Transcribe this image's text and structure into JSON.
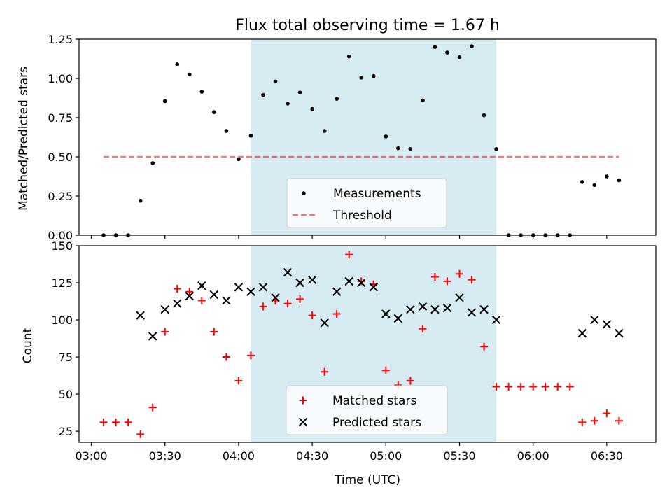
{
  "colors": {
    "background": "#ffffff",
    "span_fill": "#add8e6",
    "measurement": "#000000",
    "threshold": "#ff0000",
    "matched": "#ff0000",
    "predicted": "#000000"
  },
  "chart_data": [
    {
      "type": "scatter",
      "title": "Flux total observing time = 1.67 h",
      "ylabel": "Matched/Predicted stars",
      "xlabel": "",
      "xlim": [
        "02:55",
        "06:50"
      ],
      "ylim": [
        0,
        1.25
      ],
      "yticks": [
        0,
        0.25,
        0.5,
        0.75,
        1.0,
        1.25
      ],
      "ytick_labels": [
        "0.00",
        "0.25",
        "0.50",
        "0.75",
        "1.00",
        "1.25"
      ],
      "highlight_span": [
        "04:05",
        "05:45"
      ],
      "legend": {
        "placement": "lower-center",
        "entries": [
          "Measurements",
          "Threshold"
        ]
      },
      "series": [
        {
          "name": "Measurements",
          "marker": "dot",
          "points": [
            [
              "03:05",
              0
            ],
            [
              "03:10",
              0
            ],
            [
              "03:15",
              0
            ],
            [
              "03:20",
              0.22
            ],
            [
              "03:25",
              0.46
            ],
            [
              "03:30",
              0.855
            ],
            [
              "03:35",
              1.09
            ],
            [
              "03:40",
              1.025
            ],
            [
              "03:45",
              0.915
            ],
            [
              "03:50",
              0.785
            ],
            [
              "03:55",
              0.665
            ],
            [
              "04:00",
              0.485
            ],
            [
              "04:05",
              0.635
            ],
            [
              "04:10",
              0.895
            ],
            [
              "04:15",
              0.98
            ],
            [
              "04:20",
              0.84
            ],
            [
              "04:25",
              0.91
            ],
            [
              "04:30",
              0.805
            ],
            [
              "04:35",
              0.665
            ],
            [
              "04:40",
              0.87
            ],
            [
              "04:45",
              1.14
            ],
            [
              "04:50",
              1.005
            ],
            [
              "04:55",
              1.015
            ],
            [
              "05:00",
              0.63
            ],
            [
              "05:05",
              0.555
            ],
            [
              "05:10",
              0.55
            ],
            [
              "05:15",
              0.86
            ],
            [
              "05:20",
              1.2
            ],
            [
              "05:25",
              1.165
            ],
            [
              "05:30",
              1.135
            ],
            [
              "05:35",
              1.205
            ],
            [
              "05:40",
              0.765
            ],
            [
              "05:45",
              0.55
            ],
            [
              "05:50",
              0
            ],
            [
              "05:55",
              0
            ],
            [
              "06:00",
              0
            ],
            [
              "06:05",
              0
            ],
            [
              "06:10",
              0
            ],
            [
              "06:15",
              0
            ],
            [
              "06:20",
              0.34
            ],
            [
              "06:25",
              0.32
            ],
            [
              "06:30",
              0.375
            ],
            [
              "06:35",
              0.35
            ]
          ]
        },
        {
          "name": "Threshold",
          "marker": "dashed-line",
          "points": [
            [
              "03:05",
              0.5
            ],
            [
              "06:35",
              0.5
            ]
          ]
        }
      ]
    },
    {
      "type": "scatter",
      "title": "",
      "ylabel": "Count",
      "xlabel": "Time (UTC)",
      "xlim": [
        "02:55",
        "06:50"
      ],
      "ylim": [
        17.5,
        150
      ],
      "yticks": [
        25,
        50,
        75,
        100,
        125,
        150
      ],
      "ytick_labels": [
        "25",
        "50",
        "75",
        "100",
        "125",
        "150"
      ],
      "xticks": [
        "03:00",
        "03:30",
        "04:00",
        "04:30",
        "05:00",
        "05:30",
        "06:00",
        "06:30"
      ],
      "highlight_span": [
        "04:05",
        "05:45"
      ],
      "legend": {
        "placement": "lower-center",
        "entries": [
          "Matched stars",
          "Predicted stars"
        ]
      },
      "series": [
        {
          "name": "Matched stars",
          "marker": "plus",
          "points": [
            [
              "03:05",
              31
            ],
            [
              "03:10",
              31
            ],
            [
              "03:15",
              31
            ],
            [
              "03:20",
              23
            ],
            [
              "03:25",
              41
            ],
            [
              "03:30",
              92
            ],
            [
              "03:35",
              121
            ],
            [
              "03:40",
              119
            ],
            [
              "03:45",
              113
            ],
            [
              "03:50",
              92
            ],
            [
              "03:55",
              75
            ],
            [
              "04:00",
              59
            ],
            [
              "04:05",
              76
            ],
            [
              "04:10",
              109
            ],
            [
              "04:15",
              113
            ],
            [
              "04:20",
              111
            ],
            [
              "04:25",
              114
            ],
            [
              "04:30",
              103
            ],
            [
              "04:35",
              65
            ],
            [
              "04:40",
              104
            ],
            [
              "04:45",
              144
            ],
            [
              "04:50",
              126
            ],
            [
              "04:55",
              124
            ],
            [
              "05:00",
              66
            ],
            [
              "05:05",
              56
            ],
            [
              "05:10",
              59
            ],
            [
              "05:15",
              94
            ],
            [
              "05:20",
              129
            ],
            [
              "05:25",
              126
            ],
            [
              "05:30",
              131
            ],
            [
              "05:35",
              127
            ],
            [
              "05:40",
              82
            ],
            [
              "05:45",
              55
            ],
            [
              "05:50",
              55
            ],
            [
              "05:55",
              55
            ],
            [
              "06:00",
              55
            ],
            [
              "06:05",
              55
            ],
            [
              "06:10",
              55
            ],
            [
              "06:15",
              55
            ],
            [
              "06:20",
              31
            ],
            [
              "06:25",
              32
            ],
            [
              "06:30",
              37
            ],
            [
              "06:35",
              32
            ]
          ]
        },
        {
          "name": "Predicted stars",
          "marker": "x",
          "points": [
            [
              "03:20",
              103
            ],
            [
              "03:25",
              89
            ],
            [
              "03:30",
              107
            ],
            [
              "03:35",
              111
            ],
            [
              "03:40",
              116
            ],
            [
              "03:45",
              123
            ],
            [
              "03:50",
              117
            ],
            [
              "03:55",
              113
            ],
            [
              "04:00",
              122
            ],
            [
              "04:05",
              119
            ],
            [
              "04:10",
              122
            ],
            [
              "04:15",
              115
            ],
            [
              "04:20",
              132
            ],
            [
              "04:25",
              125
            ],
            [
              "04:30",
              127
            ],
            [
              "04:35",
              98
            ],
            [
              "04:40",
              119
            ],
            [
              "04:45",
              126
            ],
            [
              "04:50",
              125
            ],
            [
              "04:55",
              122
            ],
            [
              "05:00",
              104
            ],
            [
              "05:05",
              101
            ],
            [
              "05:10",
              107
            ],
            [
              "05:15",
              109
            ],
            [
              "05:20",
              107
            ],
            [
              "05:25",
              108
            ],
            [
              "05:30",
              115
            ],
            [
              "05:35",
              105
            ],
            [
              "05:40",
              107
            ],
            [
              "05:45",
              100
            ],
            [
              "06:20",
              91
            ],
            [
              "06:25",
              100
            ],
            [
              "06:30",
              97
            ],
            [
              "06:35",
              91
            ]
          ]
        }
      ]
    }
  ]
}
